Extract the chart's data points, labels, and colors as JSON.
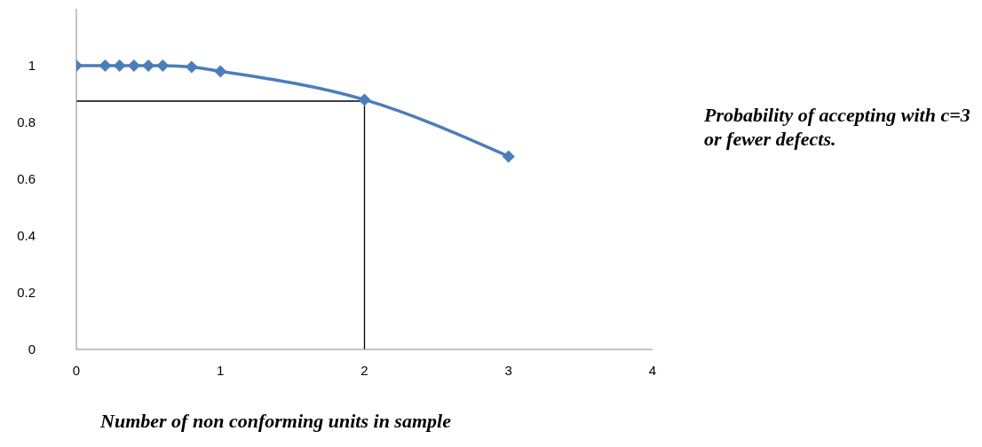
{
  "chart_data": {
    "type": "line",
    "xlabel": "Number of non conforming units in sample",
    "x": [
      0,
      0.2,
      0.3,
      0.4,
      0.5,
      0.6,
      0.8,
      1,
      2,
      3
    ],
    "series": [
      {
        "color": "#4a7ebb",
        "values": [
          1,
          1,
          1,
          1,
          1,
          1,
          0.995,
          0.98,
          0.88,
          0.68
        ]
      }
    ],
    "xlim": [
      0,
      4
    ],
    "xticks": [
      0,
      1,
      2,
      3,
      4
    ],
    "ylim": [
      0,
      1.2
    ],
    "yticks": [
      0,
      0.2,
      0.4,
      0.6,
      0.8,
      1
    ],
    "marker": "diamond",
    "line_style": "solid",
    "ref_lines": [
      {
        "axis": "y",
        "value": 0.875,
        "color": "#000000"
      },
      {
        "axis": "x",
        "value": 2,
        "color": "#000000"
      }
    ],
    "annotations": [
      "Probability of accepting with c=3 or fewer defects."
    ]
  }
}
